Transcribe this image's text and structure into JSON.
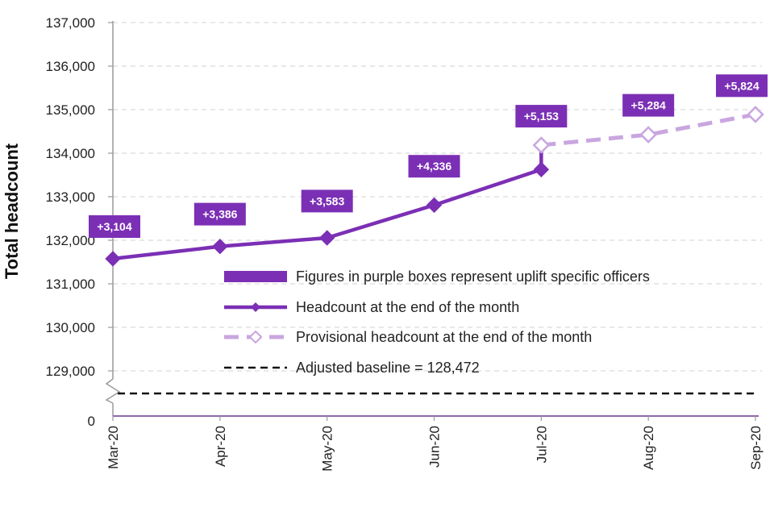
{
  "chart_data": {
    "type": "line",
    "ylabel": "Total headcount",
    "xlabel": "",
    "categories": [
      "Mar-20",
      "Apr-20",
      "May-20",
      "Jun-20",
      "Jul-20",
      "Aug-20",
      "Sep-20"
    ],
    "y_ticks": [
      "137,000",
      "136,000",
      "135,000",
      "134,000",
      "133,000",
      "132,000",
      "131,000",
      "130,000",
      "129,000",
      "0"
    ],
    "y_tick_values": [
      137000,
      136000,
      135000,
      134000,
      133000,
      132000,
      131000,
      130000,
      129000
    ],
    "ylim": [
      129000,
      137000
    ],
    "axis_break": true,
    "series": [
      {
        "name": "Headcount at the end of the month",
        "style": "solid-line-diamond-markers",
        "color": "#7b2fb5",
        "x": [
          "Mar-20",
          "Apr-20",
          "May-20",
          "Jun-20",
          "Jul-20"
        ],
        "values": [
          131576,
          131858,
          132055,
          132808,
          133625
        ]
      },
      {
        "name": "Provisional headcount at the end of the month",
        "style": "dashed-line-hollow-diamond-markers",
        "color": "#c9a6e0",
        "x": [
          "Jul-20",
          "Aug-20",
          "Sep-20"
        ],
        "values": [
          134185,
          134425,
          134890
        ]
      },
      {
        "name": "Adjusted baseline = 128,472",
        "style": "black-dashed-line",
        "color": "#111111",
        "value": 128472
      }
    ],
    "uplift_boxes": [
      {
        "category": "Mar-20",
        "label": "+3,104",
        "box_value": 132315
      },
      {
        "category": "Apr-20",
        "label": "+3,386",
        "box_value": 132600
      },
      {
        "category": "May-20",
        "label": "+3,583",
        "box_value": 132900
      },
      {
        "category": "Jun-20",
        "label": "+4,336",
        "box_value": 133700
      },
      {
        "category": "Jul-20",
        "label": "+5,153",
        "box_value": 134850
      },
      {
        "category": "Aug-20",
        "label": "+5,284",
        "box_value": 135100
      },
      {
        "category": "Sep-20",
        "label": "+5,824",
        "box_value": 135550
      }
    ],
    "uplift_box_color": "#7b2fb5",
    "legend": {
      "placement": "bottom-right",
      "entries": [
        {
          "label": "Figures in purple boxes represent uplift specific officers",
          "kind": "box"
        },
        {
          "label": "Headcount at the end of the month",
          "kind": "solid"
        },
        {
          "label": "Provisional headcount at the end of the month",
          "kind": "provisional"
        },
        {
          "label": "Adjusted baseline = 128,472",
          "kind": "baseline"
        }
      ]
    },
    "grid": true
  }
}
